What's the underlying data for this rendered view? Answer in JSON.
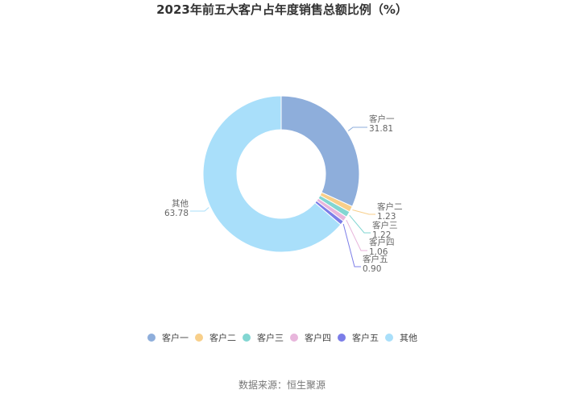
{
  "chart_data": {
    "type": "pie",
    "variant": "donut",
    "title": "2023年前五大客户占年度销售总额比例（%）",
    "slices": [
      {
        "name": "客户一",
        "value": 31.81,
        "color": "#8eaedb"
      },
      {
        "name": "客户二",
        "value": 1.23,
        "color": "#f8cf8a"
      },
      {
        "name": "客户三",
        "value": 1.22,
        "color": "#82d6d2"
      },
      {
        "name": "客户四",
        "value": 1.06,
        "color": "#e8b6dc"
      },
      {
        "name": "客户五",
        "value": 0.9,
        "color": "#7b7de8"
      },
      {
        "name": "其他",
        "value": 63.78,
        "color": "#a9dffa"
      }
    ],
    "legend_position": "bottom",
    "source": "数据来源：恒生聚源"
  }
}
